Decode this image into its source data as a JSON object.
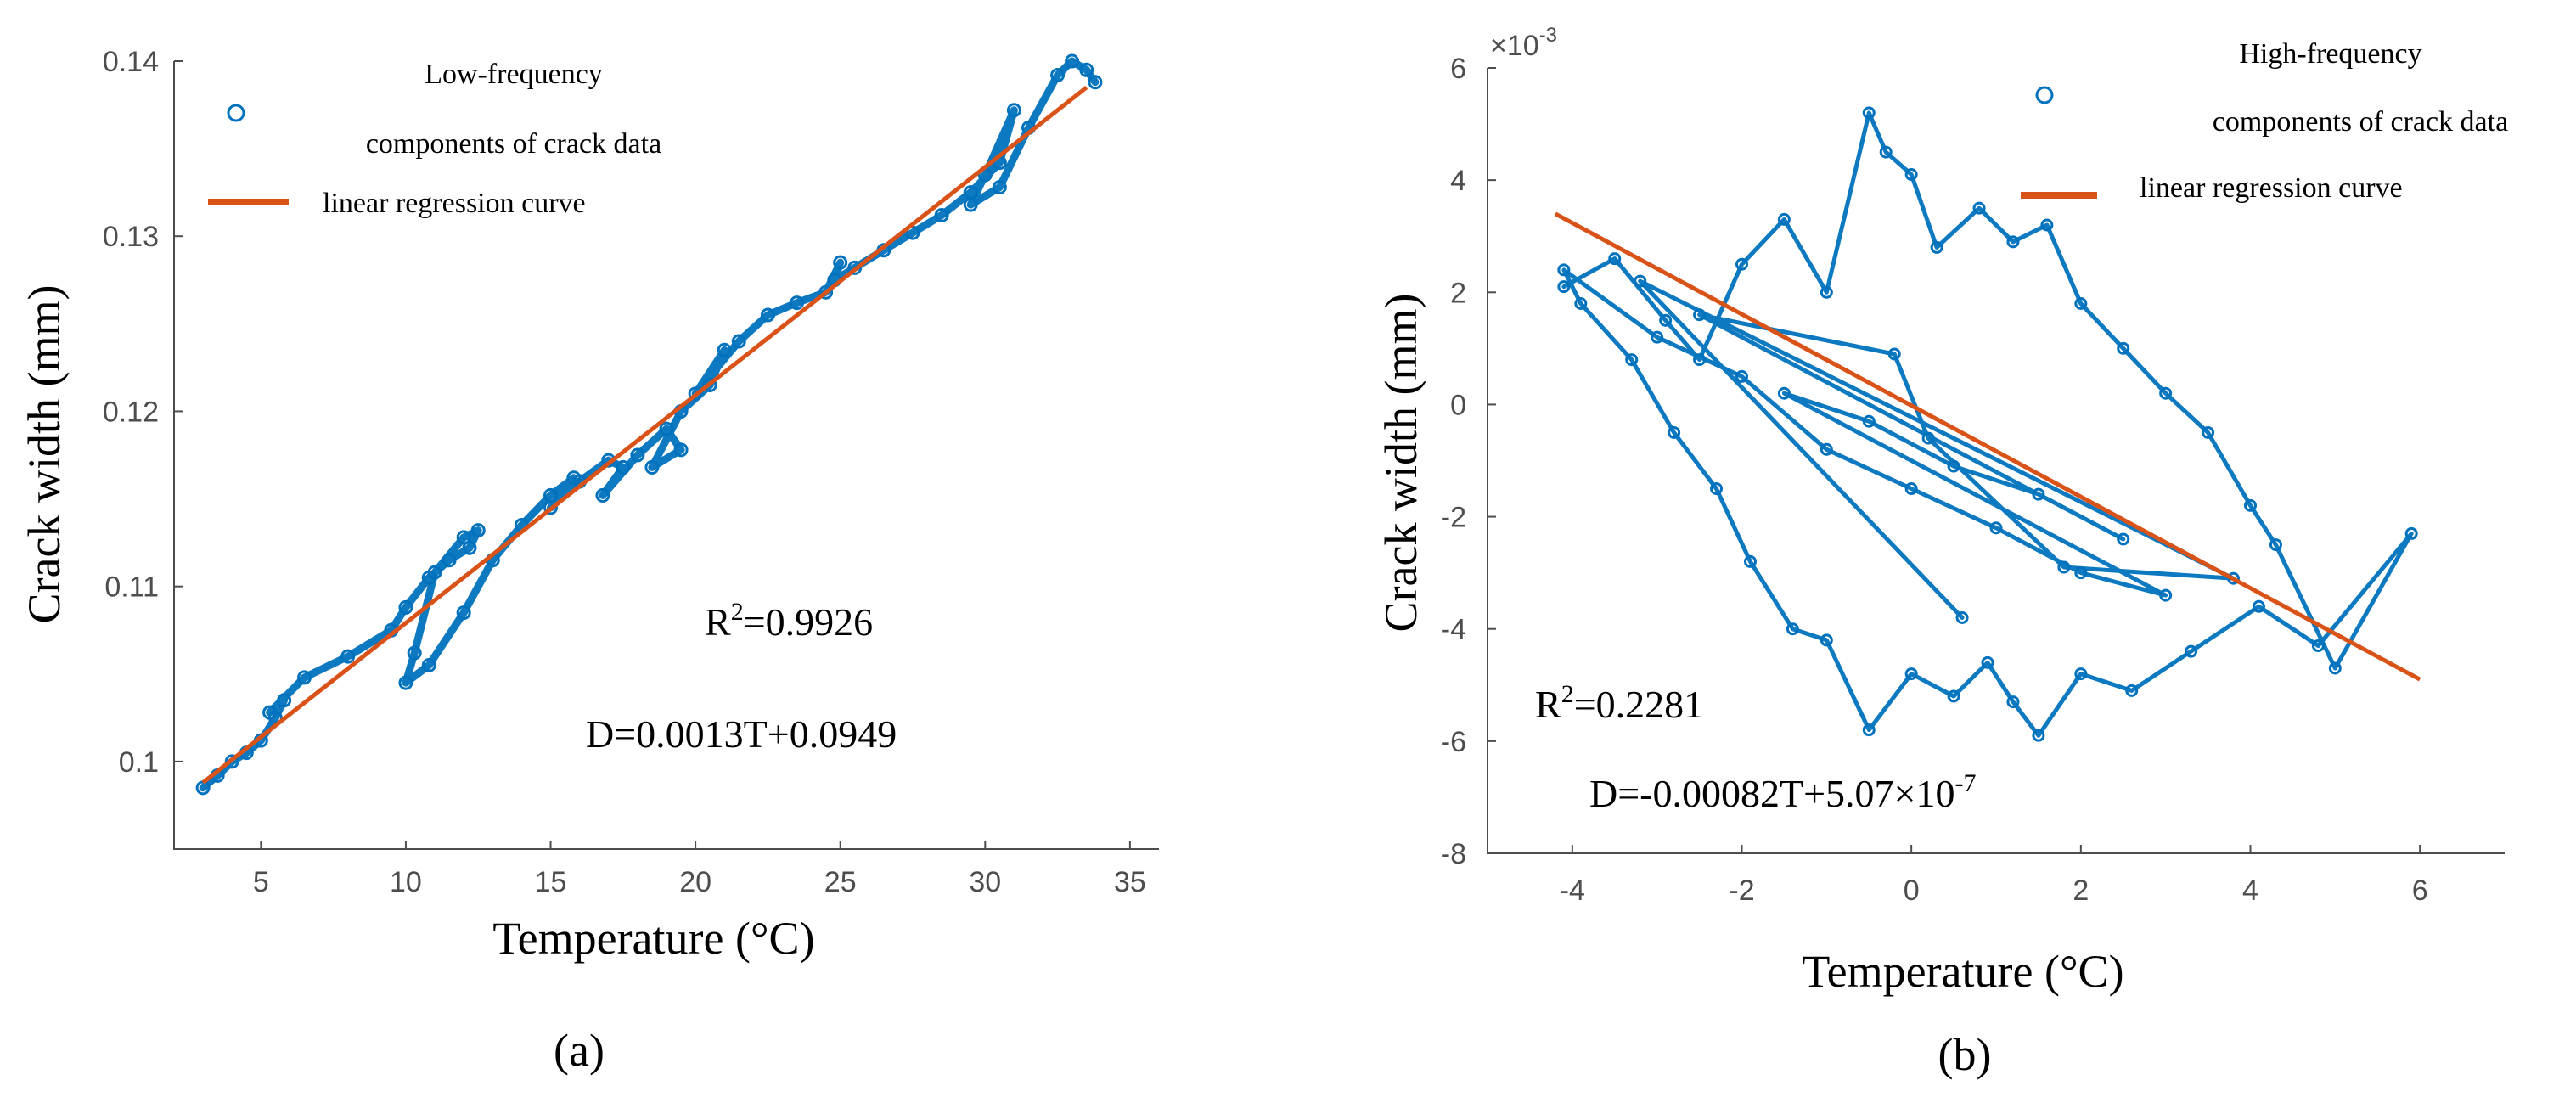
{
  "colors": {
    "data": "#0072BD",
    "regression": "#D95319",
    "axis": "#4d4d4d",
    "text": "#000000"
  },
  "chart_data": [
    {
      "type": "scatter",
      "panel_label": "(a)",
      "xlabel": "Temperature (°C)",
      "ylabel": "Crack width (mm)",
      "xlim": [
        2.0,
        36.0
      ],
      "ylim": [
        0.095,
        0.14
      ],
      "xticks": [
        5,
        10,
        15,
        20,
        25,
        30,
        35
      ],
      "yticks": [
        0.1,
        0.11,
        0.12,
        0.13,
        0.14
      ],
      "xtick_labels": [
        "5",
        "10",
        "15",
        "20",
        "25",
        "30",
        "35"
      ],
      "ytick_labels": [
        "0.1",
        "0.11",
        "0.12",
        "0.13",
        "0.14"
      ],
      "grid": false,
      "legend_position": "top-left",
      "legend": [
        {
          "kind": "marker",
          "label_lines": [
            "Low-frequency",
            "components of crack data"
          ]
        },
        {
          "kind": "line",
          "label_lines": [
            "linear regression curve"
          ]
        }
      ],
      "series": [
        {
          "name": "Low-frequency components of crack data",
          "kind": "scatter",
          "x": [
            3.0,
            3.5,
            4.0,
            4.5,
            5.0,
            5.5,
            5.8,
            5.3,
            6.5,
            8.0,
            9.5,
            10.0,
            10.8,
            11.5,
            12.2,
            12.5,
            12.0,
            11.0,
            10.3,
            10.0,
            10.8,
            12.0,
            13.0,
            14.0,
            15.0,
            15.8,
            15.0,
            16.0,
            17.0,
            17.5,
            16.8,
            18.0,
            19.0,
            19.5,
            18.5,
            19.5,
            20.5,
            21.0,
            20.0,
            21.5,
            22.5,
            23.5,
            24.5,
            25.0,
            24.8,
            25.5,
            26.5,
            27.5,
            28.5,
            29.5,
            30.5,
            31.0,
            30.0,
            29.5,
            30.5,
            31.5,
            32.5,
            33.0,
            33.5,
            33.8
          ],
          "y": [
            0.0985,
            0.0992,
            0.1,
            0.1005,
            0.1012,
            0.1025,
            0.1035,
            0.1028,
            0.1048,
            0.106,
            0.1075,
            0.1088,
            0.1105,
            0.1115,
            0.1122,
            0.1132,
            0.1128,
            0.1108,
            0.1062,
            0.1045,
            0.1055,
            0.1085,
            0.1115,
            0.1135,
            0.1152,
            0.1162,
            0.1145,
            0.116,
            0.1172,
            0.1168,
            0.1152,
            0.1175,
            0.119,
            0.1178,
            0.1168,
            0.12,
            0.1215,
            0.1235,
            0.121,
            0.124,
            0.1255,
            0.1262,
            0.1268,
            0.1285,
            0.1275,
            0.1282,
            0.1292,
            0.1302,
            0.1312,
            0.1325,
            0.1342,
            0.1372,
            0.1335,
            0.1318,
            0.1328,
            0.1362,
            0.1392,
            0.14,
            0.1395,
            0.1388
          ]
        },
        {
          "name": "linear regression curve",
          "kind": "line",
          "x": [
            3.0,
            33.5
          ],
          "y": [
            0.0988,
            0.1385
          ]
        }
      ],
      "annotations": [
        {
          "prefix": "R",
          "sup": "2",
          "suffix": "=0.9926"
        },
        {
          "prefix": "D=0.0013T+0.0949",
          "sup": "",
          "suffix": ""
        }
      ]
    },
    {
      "type": "scatter",
      "panel_label": "(b)",
      "xlabel": "Temperature (°C)",
      "ylabel": "Crack width (mm)",
      "xlim": [
        -5.0,
        7.0
      ],
      "ylim": [
        -8.0,
        6.0
      ],
      "y_multiplier_label": "×10",
      "y_multiplier_exponent": "-3",
      "xticks": [
        -4,
        -2,
        0,
        2,
        4,
        6
      ],
      "yticks": [
        -8,
        -6,
        -4,
        -2,
        0,
        2,
        4,
        6
      ],
      "xtick_labels": [
        "-4",
        "-2",
        "0",
        "2",
        "4",
        "6"
      ],
      "ytick_labels": [
        "-8",
        "-6",
        "-4",
        "-2",
        "0",
        "2",
        "4",
        "6"
      ],
      "grid": false,
      "legend_position": "top-right",
      "legend": [
        {
          "kind": "marker",
          "label_lines": [
            "High-frequency",
            "components of crack data"
          ]
        },
        {
          "kind": "line",
          "label_lines": [
            "linear regression curve"
          ]
        }
      ],
      "series": [
        {
          "name": "High-frequency components of crack data",
          "kind": "scatter",
          "x": [
            -4.1,
            -3.5,
            -2.9,
            -2.5,
            -2.0,
            -1.5,
            -1.0,
            -0.5,
            -0.3,
            0.0,
            0.3,
            0.8,
            1.2,
            1.6,
            2.0,
            2.5,
            3.0,
            3.5,
            4.0,
            4.3,
            5.0,
            5.9,
            4.8,
            4.1,
            3.3,
            2.6,
            2.0,
            1.5,
            1.2,
            0.9,
            0.5,
            0.0,
            -0.5,
            -1.0,
            -1.4,
            -1.9,
            -2.3,
            -2.8,
            -3.3,
            -3.9,
            -4.1,
            -3.0,
            -2.0,
            -1.0,
            0.0,
            1.0,
            2.0,
            3.0,
            -1.5,
            -0.5,
            0.5,
            1.5,
            2.5,
            -2.5,
            -0.2,
            0.2,
            1.8,
            3.8,
            -3.2,
            0.6
          ],
          "y": [
            2.1,
            2.6,
            1.5,
            0.8,
            2.5,
            3.3,
            2.0,
            5.2,
            4.5,
            4.1,
            2.8,
            3.5,
            2.9,
            3.2,
            1.8,
            1.0,
            0.2,
            -0.5,
            -1.8,
            -2.5,
            -4.7,
            -2.3,
            -4.3,
            -3.6,
            -4.4,
            -5.1,
            -4.8,
            -5.9,
            -5.3,
            -4.6,
            -5.2,
            -4.8,
            -5.8,
            -4.2,
            -4.0,
            -2.8,
            -1.5,
            -0.5,
            0.8,
            1.8,
            2.4,
            1.2,
            0.5,
            -0.8,
            -1.5,
            -2.2,
            -3.0,
            -3.4,
            0.2,
            -0.3,
            -1.1,
            -1.6,
            -2.4,
            1.6,
            0.9,
            -0.6,
            -2.9,
            -3.1,
            2.2,
            -3.8
          ]
        },
        {
          "name": "linear regression curve",
          "kind": "line",
          "x": [
            -4.2,
            6.0
          ],
          "y": [
            3.4,
            -4.9
          ]
        }
      ],
      "annotations": [
        {
          "prefix": "R",
          "sup": "2",
          "suffix": "=0.2281"
        },
        {
          "prefix": "D=-0.00082T+5.07×10",
          "sup": "-7",
          "suffix": ""
        }
      ]
    }
  ]
}
